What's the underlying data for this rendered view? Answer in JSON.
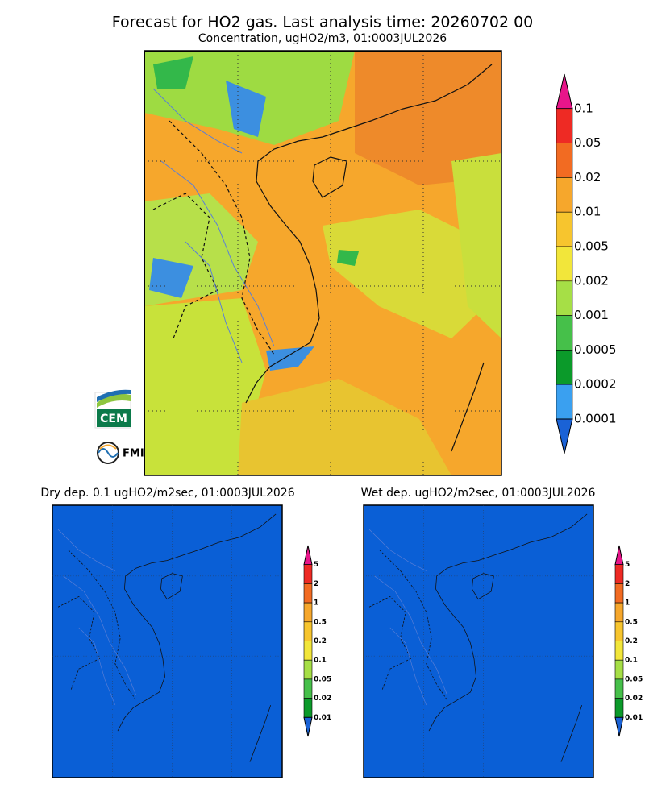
{
  "header": {
    "title": "Forecast for HO2 gas. Last analysis time: 20260702 00",
    "subtitle": "Concentration, ugHO2/m3, 01:0003JUL2026"
  },
  "main_legend": {
    "labels": [
      "0.1",
      "0.05",
      "0.02",
      "0.01",
      "0.005",
      "0.002",
      "0.001",
      "0.0005",
      "0.0002",
      "0.0001"
    ]
  },
  "panels": [
    {
      "title": "Dry dep. 0.1 ugHO2/m2sec, 01:0003JUL2026",
      "legend": {
        "labels": [
          "5",
          "2",
          "1",
          "0.5",
          "0.2",
          "0.1",
          "0.05",
          "0.02",
          "0.01"
        ]
      }
    },
    {
      "title": "Wet dep. ugHO2/m2sec, 01:0003JUL2026",
      "legend": {
        "labels": [
          "5",
          "2",
          "1",
          "0.5",
          "0.2",
          "0.1",
          "0.05",
          "0.02",
          "0.01"
        ]
      }
    }
  ],
  "logos": {
    "cem": "CEM",
    "fmi": "FMI"
  }
}
